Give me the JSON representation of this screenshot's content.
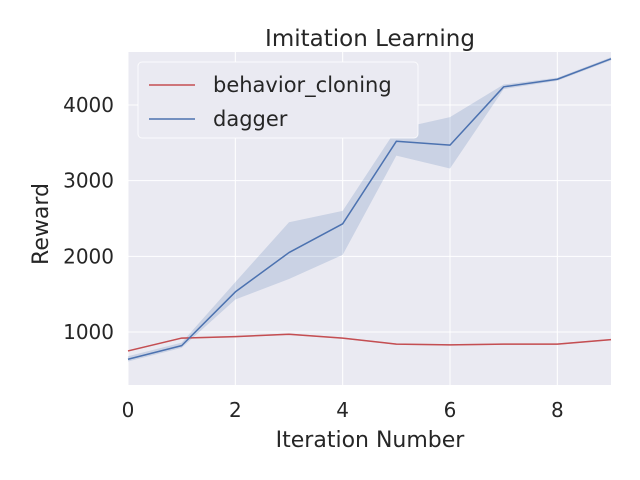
{
  "chart_data": {
    "type": "line",
    "title": "Imitation Learning",
    "xlabel": "Iteration Number",
    "ylabel": "Reward",
    "xlim": [
      0,
      9
    ],
    "ylim": [
      300,
      4700
    ],
    "x": [
      0,
      1,
      2,
      3,
      4,
      5,
      6,
      7,
      8,
      9
    ],
    "xticks": [
      0,
      2,
      4,
      6,
      8
    ],
    "xtick_labels": [
      "0",
      "2",
      "4",
      "6",
      "8"
    ],
    "yticks": [
      1000,
      2000,
      3000,
      4000
    ],
    "ytick_labels": [
      "1000",
      "2000",
      "3000",
      "4000"
    ],
    "grid": true,
    "legend_position": "top-left",
    "series": [
      {
        "name": "behavior_cloning",
        "color": "#c44e52",
        "values": [
          750,
          920,
          940,
          970,
          920,
          840,
          830,
          840,
          840,
          900
        ],
        "lower": [
          740,
          910,
          930,
          960,
          910,
          830,
          820,
          830,
          830,
          890
        ],
        "upper": [
          760,
          930,
          950,
          980,
          930,
          850,
          840,
          850,
          850,
          910
        ]
      },
      {
        "name": "dagger",
        "color": "#4c72b0",
        "values": [
          640,
          820,
          1530,
          2050,
          2430,
          3520,
          3470,
          4240,
          4340,
          4610
        ],
        "lower": [
          610,
          790,
          1430,
          1700,
          2020,
          3330,
          3160,
          4210,
          4320,
          4590
        ],
        "upper": [
          680,
          860,
          1660,
          2450,
          2600,
          3680,
          3840,
          4270,
          4360,
          4630
        ]
      }
    ]
  }
}
